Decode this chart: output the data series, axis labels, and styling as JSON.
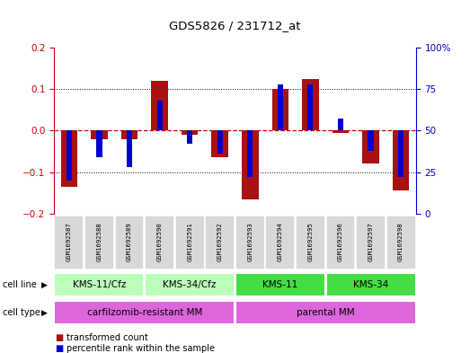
{
  "title": "GDS5826 / 231712_at",
  "samples": [
    "GSM1692587",
    "GSM1692588",
    "GSM1692589",
    "GSM1692590",
    "GSM1692591",
    "GSM1692592",
    "GSM1692593",
    "GSM1692594",
    "GSM1692595",
    "GSM1692596",
    "GSM1692597",
    "GSM1692598"
  ],
  "red_values": [
    -0.135,
    -0.02,
    -0.02,
    0.12,
    -0.01,
    -0.065,
    -0.165,
    0.1,
    0.125,
    -0.005,
    -0.08,
    -0.145
  ],
  "blue_percentile": [
    20,
    34,
    28,
    68,
    42,
    36,
    22,
    78,
    78,
    57,
    38,
    22
  ],
  "cell_line_groups": [
    {
      "label": "KMS-11/Cfz",
      "start": 0,
      "end": 2,
      "color": "#bbffbb"
    },
    {
      "label": "KMS-34/Cfz",
      "start": 3,
      "end": 5,
      "color": "#bbffbb"
    },
    {
      "label": "KMS-11",
      "start": 6,
      "end": 8,
      "color": "#44dd44"
    },
    {
      "label": "KMS-34",
      "start": 9,
      "end": 11,
      "color": "#44dd44"
    }
  ],
  "cell_type_groups": [
    {
      "label": "carfilzomib-resistant MM",
      "start": 0,
      "end": 5
    },
    {
      "label": "parental MM",
      "start": 6,
      "end": 11
    }
  ],
  "cell_type_color": "#dd66dd",
  "ylim_left": [
    -0.2,
    0.2
  ],
  "ylim_right": [
    0,
    100
  ],
  "yticks_left": [
    -0.2,
    -0.1,
    0,
    0.1,
    0.2
  ],
  "yticks_right": [
    0,
    25,
    50,
    75,
    100
  ],
  "bar_color": "#aa1111",
  "marker_color": "#0000cc",
  "bg_color": "#ffffff",
  "zero_line_color": "#cc0000",
  "grid_color": "#000000"
}
